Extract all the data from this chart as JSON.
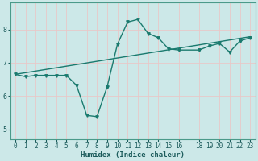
{
  "xlabel": "Humidex (Indice chaleur)",
  "bg_color": "#cce8e8",
  "grid_color": "#e8c8c8",
  "line_color": "#1a7a6e",
  "xlim": [
    -0.5,
    23.5
  ],
  "ylim": [
    4.7,
    8.8
  ],
  "yticks": [
    5,
    6,
    7,
    8
  ],
  "xticks": [
    0,
    1,
    2,
    3,
    4,
    5,
    6,
    7,
    8,
    9,
    10,
    11,
    12,
    13,
    14,
    15,
    16,
    18,
    19,
    20,
    21,
    22,
    23
  ],
  "line1_x": [
    0,
    1,
    2,
    3,
    4,
    5,
    6,
    7,
    8,
    9,
    10,
    11,
    12,
    13,
    14,
    15,
    16,
    18,
    19,
    20,
    21,
    22,
    23
  ],
  "line1_y": [
    6.65,
    6.58,
    6.62,
    6.62,
    6.62,
    6.62,
    6.32,
    5.42,
    5.38,
    6.28,
    7.55,
    8.22,
    8.3,
    7.88,
    7.75,
    7.42,
    7.38,
    7.38,
    7.5,
    7.58,
    7.32,
    7.65,
    7.75
  ],
  "line2_x": [
    0,
    23
  ],
  "line2_y": [
    6.65,
    7.78
  ],
  "marker": "v",
  "markersize": 2.5,
  "linewidth": 1.0,
  "tick_fontsize": 5.5,
  "xlabel_fontsize": 6.5
}
